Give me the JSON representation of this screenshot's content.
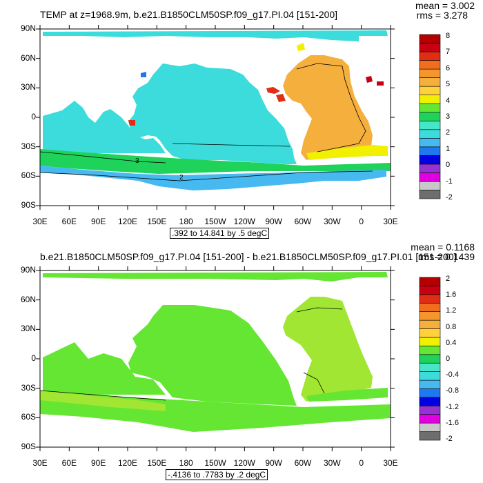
{
  "panel_top": {
    "title": "TEMP at z=1968.9m, b.e21.B1850CLM50SP.f09_g17.PI.04 [151-200]",
    "mean_text": "mean = 3.002",
    "rms_text": "rms = 3.278",
    "range_text": ".392 to 14.841 by .5 degC",
    "colorbar_labels": [
      "8",
      "7",
      "6",
      "5",
      "4",
      "3",
      "2",
      "1",
      "0",
      "-1",
      "-2"
    ],
    "contour_labels": [
      "3",
      "2"
    ]
  },
  "panel_bottom": {
    "title": "b.e21.B1850CLM50SP.f09_g17.PI.04 [151-200] - b.e21.B1850CLM50SP.f09_g17.PI.01 [151-200]",
    "mean_text": "mean = 0.1168",
    "rms_text": "rms = 0.1439",
    "range_text": "-.4136 to .7783 by .2 degC",
    "colorbar_labels": [
      "2",
      "1.6",
      "1.2",
      "0.8",
      "0.4",
      "0",
      "-0.4",
      "-0.8",
      "-1.2",
      "-1.6",
      "-2"
    ]
  },
  "lat_labels": [
    "90N",
    "60N",
    "30N",
    "0",
    "30S",
    "60S",
    "90S"
  ],
  "lon_labels": [
    "30E",
    "60E",
    "90E",
    "120E",
    "150E",
    "180",
    "150W",
    "120W",
    "90W",
    "60W",
    "30W",
    "0",
    "30E"
  ],
  "colors": {
    "top_scale": [
      "#6e6e6e",
      "#c8c8c8",
      "#e100e1",
      "#9632d2",
      "#0000e1",
      "#1e78f0",
      "#46b9f0",
      "#3cdcdc",
      "#46e6c8",
      "#1ed25a",
      "#64e632",
      "#f0f000",
      "#ffd23c",
      "#f5af3c",
      "#f5962d",
      "#f06e1e",
      "#e12d14",
      "#c80014",
      "#b40000"
    ],
    "bottom_scale": [
      "#6e6e6e",
      "#c8c8c8",
      "#e100e1",
      "#9632d2",
      "#0000e1",
      "#1e78f0",
      "#46b9f0",
      "#3cdcdc",
      "#46e6c8",
      "#1ed25a",
      "#64e632",
      "#f0f000",
      "#ffd23c",
      "#f5af3c",
      "#f5962d",
      "#f06e1e",
      "#e12d14",
      "#c80014",
      "#b40000"
    ]
  }
}
